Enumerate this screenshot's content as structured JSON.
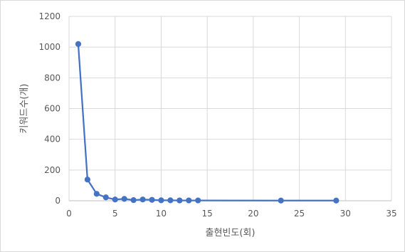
{
  "chart_data": {
    "type": "scatter",
    "title": "",
    "xlabel": "출현빈도(회)",
    "ylabel": "키워드수(개)",
    "xlim": [
      0,
      35
    ],
    "ylim": [
      0,
      1200
    ],
    "x_ticks": [
      0,
      5,
      10,
      15,
      20,
      25,
      30,
      35
    ],
    "y_ticks": [
      0,
      200,
      400,
      600,
      800,
      1000,
      1200
    ],
    "grid": true,
    "legend": "none",
    "series": [
      {
        "x": [
          1,
          2,
          3,
          4,
          5,
          6,
          7,
          8,
          9,
          10,
          11,
          12,
          13,
          14,
          23,
          29
        ],
        "y": [
          1020,
          138,
          45,
          22,
          8,
          12,
          4,
          8,
          6,
          3,
          3,
          2,
          2,
          2,
          1,
          1
        ],
        "color": "#4472c4",
        "lines": true,
        "markers": true
      }
    ]
  }
}
